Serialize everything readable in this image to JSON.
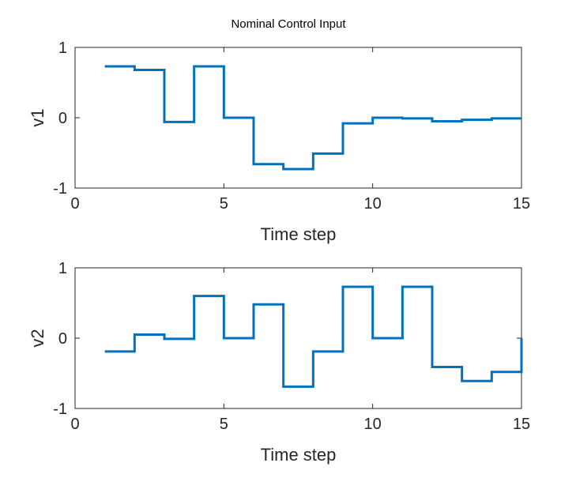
{
  "title": "Nominal Control Input",
  "chart_data": [
    {
      "type": "line",
      "style": "stairs",
      "xlabel": "Time step",
      "ylabel": "v1",
      "xlim": [
        0,
        15
      ],
      "ylim": [
        -1,
        1
      ],
      "xticks": [
        0,
        5,
        10,
        15
      ],
      "yticks": [
        -1,
        0,
        1
      ],
      "grid": false,
      "color": "#0072BD",
      "x": [
        1,
        2,
        3,
        4,
        5,
        6,
        7,
        8,
        9,
        10,
        11,
        12,
        13,
        14,
        15
      ],
      "values": [
        0.73,
        0.68,
        -0.06,
        0.73,
        0.0,
        -0.66,
        -0.73,
        -0.51,
        -0.08,
        0.0,
        -0.01,
        -0.05,
        -0.03,
        -0.01,
        -0.01
      ]
    },
    {
      "type": "line",
      "style": "stairs",
      "xlabel": "Time step",
      "ylabel": "v2",
      "xlim": [
        0,
        15
      ],
      "ylim": [
        -1,
        1
      ],
      "xticks": [
        0,
        5,
        10,
        15
      ],
      "yticks": [
        -1,
        0,
        1
      ],
      "grid": false,
      "color": "#0072BD",
      "x": [
        1,
        2,
        3,
        4,
        5,
        6,
        7,
        8,
        9,
        10,
        11,
        12,
        13,
        14,
        15
      ],
      "values": [
        -0.19,
        0.05,
        -0.01,
        0.6,
        0.0,
        0.48,
        -0.69,
        -0.19,
        0.73,
        0.0,
        0.73,
        -0.41,
        -0.61,
        -0.48,
        0.0
      ]
    }
  ]
}
